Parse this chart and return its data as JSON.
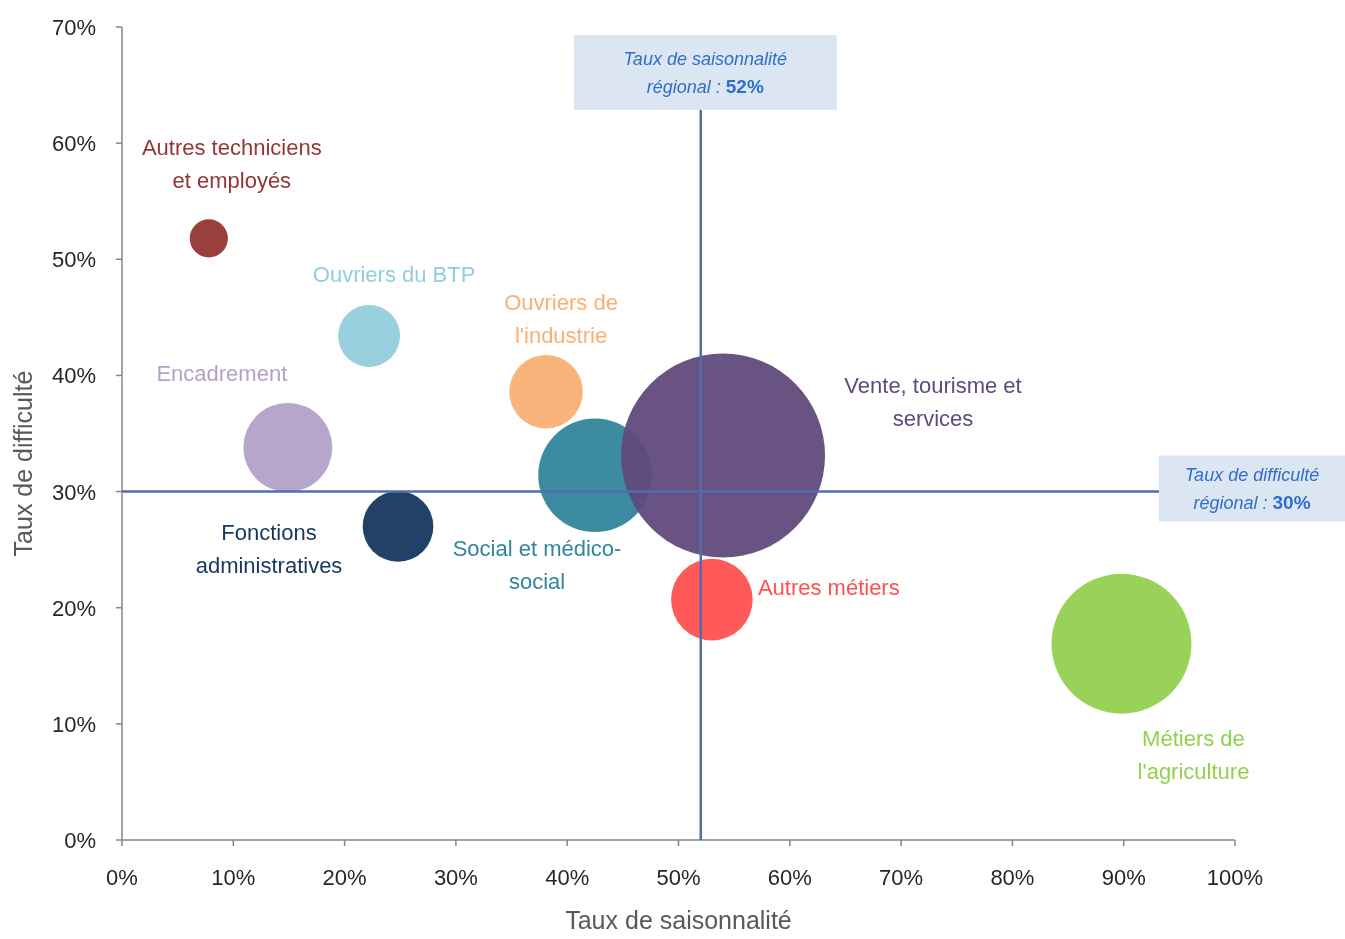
{
  "chart_data": {
    "type": "bubble",
    "xlabel": "Taux de saisonnalité",
    "ylabel": "Taux de difficulté",
    "xlim": [
      0,
      100
    ],
    "xticks": [
      {
        "value": 0,
        "label": "0%"
      },
      {
        "value": 10,
        "label": "10%"
      },
      {
        "value": 20,
        "label": "20%"
      },
      {
        "value": 30,
        "label": "30%"
      },
      {
        "value": 40,
        "label": "40%"
      },
      {
        "value": 50,
        "label": "50%"
      },
      {
        "value": 60,
        "label": "60%"
      },
      {
        "value": 70,
        "label": "70%"
      },
      {
        "value": 80,
        "label": "80%"
      },
      {
        "value": 90,
        "label": "90%"
      },
      {
        "value": 100,
        "label": "100%"
      }
    ],
    "ylim": [
      0,
      70
    ],
    "yticks": [
      {
        "value": 0,
        "label": "0%"
      },
      {
        "value": 10,
        "label": "10%"
      },
      {
        "value": 20,
        "label": "20%"
      },
      {
        "value": 30,
        "label": "30%"
      },
      {
        "value": 40,
        "label": "40%"
      },
      {
        "value": 50,
        "label": "50%"
      },
      {
        "value": 60,
        "label": "60%"
      },
      {
        "value": 70,
        "label": "70%"
      }
    ],
    "grid": false,
    "series": [
      {
        "name": "Autres techniciens et employés",
        "color": "#943634",
        "x": [
          7.8
        ],
        "values": [
          51.8
        ],
        "sizes": [
          0.035
        ]
      },
      {
        "name": "Ouvriers du BTP",
        "color": "#92cddc",
        "x": [
          22.2
        ],
        "values": [
          43.4
        ],
        "sizes": [
          0.092
        ]
      },
      {
        "name": "Ouvriers de l'industrie",
        "color": "#f9b074",
        "x": [
          38.1
        ],
        "values": [
          38.6
        ],
        "sizes": [
          0.13
        ]
      },
      {
        "name": "Encadrement",
        "color": "#b2a2c7",
        "x": [
          14.9
        ],
        "values": [
          33.8
        ],
        "sizes": [
          0.19
        ]
      },
      {
        "name": "Fonctions administratives",
        "color": "#17375e",
        "x": [
          24.8
        ],
        "values": [
          27.0
        ],
        "sizes": [
          0.12
        ]
      },
      {
        "name": "Social et médico-social",
        "color": "#31859c",
        "x": [
          42.5
        ],
        "values": [
          31.4
        ],
        "sizes": [
          0.31
        ]
      },
      {
        "name": "Vente, tourisme et services",
        "color": "#604a7b",
        "x": [
          54.0
        ],
        "values": [
          33.1
        ],
        "sizes": [
          1
        ]
      },
      {
        "name": "Autres métiers",
        "color": "#ff5050",
        "x": [
          53.0
        ],
        "values": [
          20.7
        ],
        "sizes": [
          0.16
        ]
      },
      {
        "name": "Métiers de l'agriculture",
        "color": "#92d050",
        "x": [
          89.8
        ],
        "values": [
          16.9
        ],
        "sizes": [
          0.47
        ]
      }
    ],
    "ref_lines": [
      {
        "axis": "x",
        "value": 52,
        "label": "Taux de saisonnalité régional : 52%",
        "color": "#4f6eaa"
      },
      {
        "axis": "y",
        "value": 30,
        "label": "Taux de difficulté régional : 30%",
        "color": "#4f6eaa"
      }
    ]
  }
}
